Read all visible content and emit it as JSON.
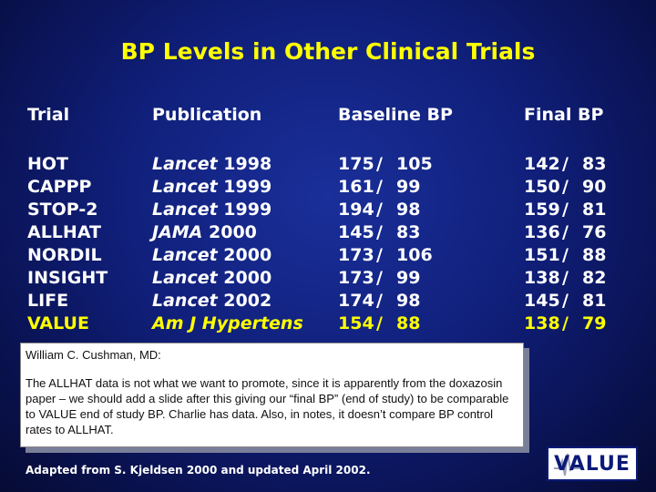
{
  "title": "BP Levels in Other Clinical Trials",
  "headers": {
    "trial": "Trial",
    "publication": "Publication",
    "baseline": "Baseline BP",
    "final": "Final BP"
  },
  "rows": [
    {
      "trial": "HOT",
      "journal": "Lancet",
      "year": "1998",
      "b_sys": "175",
      "b_dia": "105",
      "f_sys": "142",
      "f_dia": "83"
    },
    {
      "trial": "CAPPP",
      "journal": "Lancet",
      "year": "1999",
      "b_sys": "161",
      "b_dia": "99",
      "f_sys": "150",
      "f_dia": "90"
    },
    {
      "trial": "STOP-2",
      "journal": "Lancet",
      "year": "1999",
      "b_sys": "194",
      "b_dia": "98",
      "f_sys": "159",
      "f_dia": "81"
    },
    {
      "trial": "ALLHAT",
      "journal": "JAMA",
      "year": "2000",
      "b_sys": "145",
      "b_dia": "83",
      "f_sys": "136",
      "f_dia": "76"
    },
    {
      "trial": "NORDIL",
      "journal": "Lancet",
      "year": "2000",
      "b_sys": "173",
      "b_dia": "106",
      "f_sys": "151",
      "f_dia": "88"
    },
    {
      "trial": "INSIGHT",
      "journal": "Lancet",
      "year": "2000",
      "b_sys": "173",
      "b_dia": "99",
      "f_sys": "138",
      "f_dia": "82"
    },
    {
      "trial": "LIFE",
      "journal": "Lancet",
      "year": "2002",
      "b_sys": "174",
      "b_dia": "98",
      "f_sys": "145",
      "f_dia": "81"
    },
    {
      "trial": "VALUE",
      "journal": "Am J Hypertens",
      "year": "",
      "b_sys": "154",
      "b_dia": "88",
      "f_sys": "138",
      "f_dia": "79",
      "highlight": true
    }
  ],
  "separator": "/",
  "note": {
    "author": "William C. Cushman, MD:",
    "body": "The ALLHAT data is not what we want to promote, since it is apparently from the doxazosin paper – we should add a slide after this giving our “final BP” (end of study) to be comparable to VALUE end of study BP. Charlie has data. Also, in notes, it doesn’t compare BP control rates to ALLHAT."
  },
  "footer": "Adapted from S. Kjeldsen 2000 and updated April 2002.",
  "logo": {
    "text": "VALUE"
  },
  "colors": {
    "title": "#ffff00",
    "text": "#ffffff",
    "highlight": "#ffff00",
    "background": "#101f7a"
  }
}
